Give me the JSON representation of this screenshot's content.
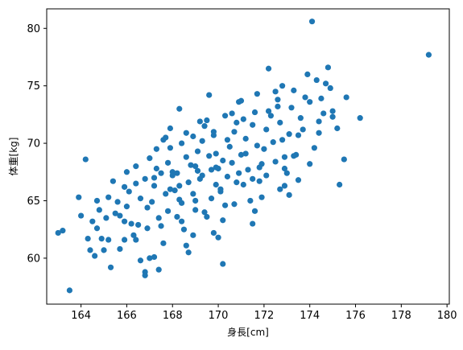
{
  "chart_data": {
    "type": "scatter",
    "xlabel": "身長[cm]",
    "ylabel": "体重[kg]",
    "xlim": [
      162.5,
      180.1
    ],
    "ylim": [
      56.0,
      81.7
    ],
    "xticks": [
      164,
      166,
      168,
      170,
      172,
      174,
      176,
      178,
      180
    ],
    "yticks": [
      60,
      65,
      70,
      75,
      80
    ],
    "grid": false,
    "marker_color": "#1f77b4",
    "series": [
      {
        "points": [
          [
            163.0,
            62.2
          ],
          [
            163.5,
            57.2
          ],
          [
            164.2,
            68.6
          ],
          [
            163.9,
            65.3
          ],
          [
            164.3,
            61.7
          ],
          [
            164.4,
            60.7
          ],
          [
            164.5,
            63.2
          ],
          [
            164.7,
            65.0
          ],
          [
            164.7,
            62.6
          ],
          [
            164.6,
            60.2
          ],
          [
            164.9,
            61.7
          ],
          [
            165.1,
            63.5
          ],
          [
            165.3,
            59.2
          ],
          [
            165.0,
            60.7
          ],
          [
            165.2,
            61.6
          ],
          [
            165.2,
            65.3
          ],
          [
            165.4,
            66.7
          ],
          [
            165.6,
            64.9
          ],
          [
            165.7,
            63.7
          ],
          [
            165.9,
            63.2
          ],
          [
            165.9,
            61.6
          ],
          [
            165.7,
            60.8
          ],
          [
            166.2,
            63.0
          ],
          [
            166.3,
            62.0
          ],
          [
            166.4,
            61.6
          ],
          [
            166.1,
            65.8
          ],
          [
            166.4,
            66.5
          ],
          [
            166.4,
            68.0
          ],
          [
            166.6,
            59.8
          ],
          [
            166.8,
            58.8
          ],
          [
            166.8,
            58.5
          ],
          [
            167.0,
            60.0
          ],
          [
            166.9,
            62.6
          ],
          [
            166.9,
            64.4
          ],
          [
            167.2,
            66.3
          ],
          [
            167.3,
            67.8
          ],
          [
            167.3,
            69.5
          ],
          [
            167.6,
            70.3
          ],
          [
            167.7,
            70.5
          ],
          [
            167.9,
            71.3
          ],
          [
            167.8,
            68.3
          ],
          [
            168.0,
            67.5
          ],
          [
            167.9,
            66.0
          ],
          [
            167.8,
            64.1
          ],
          [
            167.5,
            62.8
          ],
          [
            167.6,
            61.3
          ],
          [
            167.2,
            60.1
          ],
          [
            167.4,
            59.0
          ],
          [
            168.3,
            73.0
          ],
          [
            168.4,
            70.0
          ],
          [
            168.6,
            68.8
          ],
          [
            168.2,
            67.4
          ],
          [
            168.3,
            66.3
          ],
          [
            168.4,
            64.8
          ],
          [
            168.2,
            63.6
          ],
          [
            168.5,
            62.5
          ],
          [
            168.6,
            61.1
          ],
          [
            168.7,
            60.5
          ],
          [
            168.9,
            62.0
          ],
          [
            169.0,
            64.2
          ],
          [
            168.9,
            65.6
          ],
          [
            169.2,
            66.9
          ],
          [
            169.0,
            68.0
          ],
          [
            169.1,
            69.3
          ],
          [
            169.3,
            70.2
          ],
          [
            169.4,
            71.5
          ],
          [
            169.6,
            74.2
          ],
          [
            169.5,
            72.0
          ],
          [
            169.8,
            70.7
          ],
          [
            169.9,
            69.1
          ],
          [
            169.7,
            67.7
          ],
          [
            169.9,
            66.4
          ],
          [
            169.7,
            65.2
          ],
          [
            169.5,
            63.6
          ],
          [
            169.8,
            62.2
          ],
          [
            170.2,
            59.5
          ],
          [
            170.0,
            61.8
          ],
          [
            170.2,
            63.3
          ],
          [
            170.3,
            64.6
          ],
          [
            170.1,
            65.8
          ],
          [
            170.4,
            67.1
          ],
          [
            170.2,
            68.5
          ],
          [
            170.5,
            69.7
          ],
          [
            170.7,
            71.0
          ],
          [
            170.6,
            72.6
          ],
          [
            170.9,
            73.6
          ],
          [
            171.1,
            72.1
          ],
          [
            171.2,
            70.4
          ],
          [
            171.0,
            69.0
          ],
          [
            171.3,
            67.7
          ],
          [
            171.1,
            66.4
          ],
          [
            171.4,
            65.0
          ],
          [
            171.5,
            63.0
          ],
          [
            171.6,
            64.1
          ],
          [
            171.8,
            66.7
          ],
          [
            171.9,
            68.2
          ],
          [
            172.0,
            69.5
          ],
          [
            172.1,
            71.2
          ],
          [
            172.2,
            72.8
          ],
          [
            172.2,
            76.5
          ],
          [
            172.5,
            74.5
          ],
          [
            172.6,
            73.2
          ],
          [
            172.7,
            71.8
          ],
          [
            172.8,
            70.3
          ],
          [
            172.9,
            68.8
          ],
          [
            173.0,
            67.4
          ],
          [
            172.9,
            66.3
          ],
          [
            173.1,
            65.5
          ],
          [
            173.4,
            69.0
          ],
          [
            173.5,
            70.7
          ],
          [
            173.6,
            72.2
          ],
          [
            173.8,
            74.0
          ],
          [
            173.9,
            76.0
          ],
          [
            174.1,
            80.6
          ],
          [
            174.3,
            75.5
          ],
          [
            174.5,
            73.9
          ],
          [
            174.6,
            72.6
          ],
          [
            174.4,
            70.9
          ],
          [
            174.2,
            69.6
          ],
          [
            174.0,
            68.2
          ],
          [
            174.8,
            76.6
          ],
          [
            174.9,
            74.8
          ],
          [
            175.0,
            72.8
          ],
          [
            175.2,
            71.3
          ],
          [
            175.3,
            66.4
          ],
          [
            175.5,
            68.6
          ],
          [
            175.6,
            74.0
          ],
          [
            176.2,
            72.2
          ],
          [
            179.2,
            77.7
          ],
          [
            163.2,
            62.4
          ],
          [
            164.0,
            63.7
          ],
          [
            164.8,
            64.2
          ],
          [
            165.5,
            63.9
          ],
          [
            166.0,
            64.5
          ],
          [
            166.6,
            65.2
          ],
          [
            167.1,
            64.9
          ],
          [
            167.7,
            65.6
          ],
          [
            168.1,
            65.9
          ],
          [
            168.7,
            66.6
          ],
          [
            169.3,
            67.2
          ],
          [
            169.9,
            67.9
          ],
          [
            170.6,
            68.3
          ],
          [
            171.2,
            69.1
          ],
          [
            171.7,
            69.8
          ],
          [
            172.4,
            70.1
          ],
          [
            173.1,
            70.8
          ],
          [
            173.7,
            71.2
          ],
          [
            174.4,
            71.9
          ],
          [
            175.0,
            72.3
          ],
          [
            165.9,
            66.2
          ],
          [
            166.8,
            66.9
          ],
          [
            167.5,
            67.4
          ],
          [
            168.8,
            68.1
          ],
          [
            169.6,
            68.9
          ],
          [
            170.4,
            70.3
          ],
          [
            171.5,
            71.6
          ],
          [
            172.3,
            72.4
          ],
          [
            173.2,
            73.1
          ],
          [
            174.0,
            73.6
          ],
          [
            166.5,
            62.9
          ],
          [
            167.4,
            63.5
          ],
          [
            168.4,
            63.2
          ],
          [
            169.4,
            64.0
          ],
          [
            170.7,
            64.7
          ],
          [
            171.9,
            65.3
          ],
          [
            172.7,
            66.0
          ],
          [
            173.5,
            66.8
          ],
          [
            168.9,
            70.6
          ],
          [
            169.2,
            71.9
          ],
          [
            170.3,
            72.4
          ],
          [
            171.0,
            73.7
          ],
          [
            171.7,
            74.3
          ],
          [
            172.8,
            75.0
          ],
          [
            167.0,
            68.7
          ],
          [
            167.9,
            69.6
          ],
          [
            168.6,
            70.9
          ],
          [
            169.8,
            71.0
          ],
          [
            170.8,
            71.8
          ],
          [
            171.6,
            72.7
          ],
          [
            172.6,
            73.8
          ],
          [
            173.3,
            74.6
          ],
          [
            174.7,
            75.2
          ],
          [
            166.0,
            67.5
          ],
          [
            167.2,
            67.0
          ],
          [
            168.0,
            67.2
          ],
          [
            169.1,
            67.6
          ],
          [
            170.0,
            67.8
          ],
          [
            170.9,
            67.4
          ],
          [
            171.8,
            67.9
          ],
          [
            172.5,
            68.4
          ],
          [
            173.3,
            68.9
          ],
          [
            168.3,
            65.1
          ],
          [
            169.0,
            65.0
          ],
          [
            170.1,
            66.0
          ],
          [
            170.8,
            66.6
          ],
          [
            171.5,
            66.9
          ],
          [
            172.1,
            67.2
          ],
          [
            172.9,
            67.8
          ]
        ]
      }
    ]
  }
}
